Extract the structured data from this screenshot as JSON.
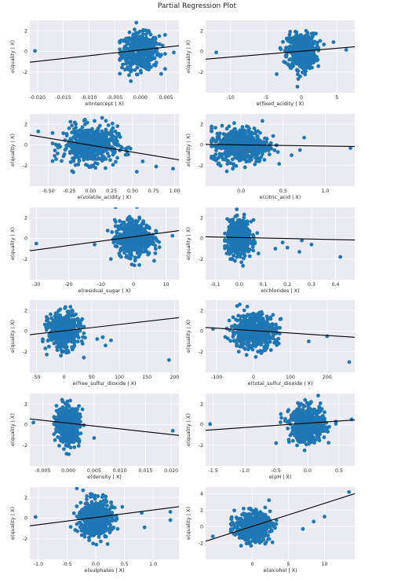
{
  "figure_title": "Partial Regression Plot",
  "colors": {
    "panel_bg": "#eaeaf2",
    "grid": "#ffffff",
    "points": "#1f77b4",
    "fit_line": "#000000"
  },
  "chart_data": [
    {
      "type": "scatter",
      "xlabel": "e(Intercept | X)",
      "ylabel": "e(quality | X)",
      "xlim": [
        -0.0215,
        0.0075
      ],
      "ylim": [
        -4.0,
        3.0
      ],
      "xticks": [
        -0.02,
        -0.015,
        -0.01,
        -0.005,
        0.0,
        0.005
      ],
      "xtick_labels": [
        "-0.020",
        "-0.015",
        "-0.010",
        "-0.005",
        "0.000",
        "0.005"
      ],
      "yticks": [
        -2,
        0,
        2
      ],
      "ytick_labels": [
        "-2",
        "0",
        "2"
      ],
      "cloud": {
        "cx": 0.0,
        "sx": 0.0018,
        "sy": 0.85,
        "xrange": [
          -0.004,
          0.0048
        ]
      },
      "outliers": [
        [
          -0.0205,
          0.05
        ],
        [
          0.0065,
          -0.1
        ],
        [
          -0.0022,
          -2.3
        ],
        [
          0.0048,
          1.6
        ]
      ],
      "line": {
        "x": [
          -0.0215,
          0.0075
        ],
        "y": [
          -1.05,
          0.55
        ]
      }
    },
    {
      "type": "scatter",
      "xlabel": "e(fixed_acidity | X)",
      "ylabel": "e(quality | X)",
      "xlim": [
        -13.5,
        7.5
      ],
      "ylim": [
        -4.0,
        3.0
      ],
      "xticks": [
        -10,
        -5,
        0,
        5
      ],
      "xtick_labels": [
        "-10",
        "-5",
        "0",
        "5"
      ],
      "yticks": [
        -2,
        0,
        2
      ],
      "ytick_labels": [
        "-2",
        "0",
        "2"
      ],
      "cloud": {
        "cx": 0.0,
        "sx": 1.0,
        "sy": 0.85,
        "xrange": [
          -3.2,
          4.0
        ]
      },
      "outliers": [
        [
          -12.0,
          -0.1
        ],
        [
          6.3,
          0.15
        ],
        [
          4.5,
          0.9
        ],
        [
          -3.5,
          -2.2
        ]
      ],
      "line": {
        "x": [
          -13.5,
          7.5
        ],
        "y": [
          -0.75,
          0.45
        ]
      }
    },
    {
      "type": "scatter",
      "xlabel": "e(volatile_acidity | X)",
      "ylabel": "e(quality | X)",
      "xlim": [
        -0.72,
        1.05
      ],
      "ylim": [
        -4.0,
        3.0
      ],
      "xticks": [
        -0.5,
        -0.25,
        0.0,
        0.25,
        0.5,
        0.75,
        1.0
      ],
      "xtick_labels": [
        "-0.50",
        "-0.25",
        "0.00",
        "0.25",
        "0.50",
        "0.75",
        "1.00"
      ],
      "yticks": [
        -2,
        0,
        2
      ],
      "ytick_labels": [
        "-2",
        "0",
        "2"
      ],
      "cloud": {
        "cx": 0.0,
        "sx": 0.16,
        "sy": 0.9,
        "xrange": [
          -0.45,
          0.55
        ]
      },
      "outliers": [
        [
          -0.62,
          1.3
        ],
        [
          0.98,
          -2.3
        ],
        [
          0.78,
          -2.1
        ],
        [
          0.62,
          -1.6
        ],
        [
          0.55,
          -2.6
        ]
      ],
      "line": {
        "x": [
          -0.72,
          1.05
        ],
        "y": [
          0.95,
          -1.45
        ]
      }
    },
    {
      "type": "scatter",
      "xlabel": "e(citric_acid | X)",
      "ylabel": "e(quality | X)",
      "xlim": [
        -0.42,
        1.35
      ],
      "ylim": [
        -4.0,
        3.0
      ],
      "xticks": [
        0.0,
        0.5,
        1.0
      ],
      "xtick_labels": [
        "0.0",
        "0.5",
        "1.0"
      ],
      "yticks": [
        -2,
        0,
        2
      ],
      "ytick_labels": [
        "-2",
        "0",
        "2"
      ],
      "cloud": {
        "cx": 0.0,
        "sx": 0.16,
        "sy": 0.85,
        "xrange": [
          -0.35,
          0.55
        ]
      },
      "outliers": [
        [
          1.3,
          -0.3
        ],
        [
          0.75,
          0.7
        ],
        [
          0.6,
          -1.0
        ],
        [
          0.7,
          -0.5
        ]
      ],
      "line": {
        "x": [
          -0.42,
          1.35
        ],
        "y": [
          0.05,
          -0.15
        ]
      }
    },
    {
      "type": "scatter",
      "xlabel": "e(residual_sugar | X)",
      "ylabel": "e(quality | X)",
      "xlim": [
        -32,
        14
      ],
      "ylim": [
        -4.0,
        3.0
      ],
      "xticks": [
        -30,
        -20,
        -10,
        0,
        10
      ],
      "xtick_labels": [
        "-30",
        "-20",
        "-10",
        "0",
        "10"
      ],
      "yticks": [
        -2,
        0,
        2
      ],
      "ytick_labels": [
        "-2",
        "0",
        "2"
      ],
      "cloud": {
        "cx": 0.0,
        "sx": 2.8,
        "sy": 0.85,
        "xrange": [
          -8,
          8
        ]
      },
      "outliers": [
        [
          -30,
          -0.5
        ],
        [
          12,
          0.25
        ],
        [
          -12,
          -0.6
        ],
        [
          -7,
          -2.0
        ]
      ],
      "line": {
        "x": [
          -32,
          14
        ],
        "y": [
          -1.2,
          0.75
        ]
      }
    },
    {
      "type": "scatter",
      "xlabel": "e(chlorides | X)",
      "ylabel": "e(quality | X)",
      "xlim": [
        -0.14,
        0.48
      ],
      "ylim": [
        -4.0,
        3.0
      ],
      "xticks": [
        -0.1,
        0.0,
        0.1,
        0.2,
        0.3,
        0.4
      ],
      "xtick_labels": [
        "-0.1",
        "0.0",
        "0.1",
        "0.2",
        "0.3",
        "0.4"
      ],
      "yticks": [
        -2,
        0,
        2
      ],
      "ytick_labels": [
        "-2",
        "0",
        "2"
      ],
      "cloud": {
        "cx": 0.0,
        "sx": 0.025,
        "sy": 0.85,
        "xrange": [
          -0.06,
          0.12
        ]
      },
      "outliers": [
        [
          0.42,
          -1.8
        ],
        [
          0.3,
          -0.6
        ],
        [
          0.25,
          -1.3
        ],
        [
          0.2,
          -0.9
        ],
        [
          0.18,
          -0.4
        ],
        [
          0.15,
          -1.0
        ],
        [
          0.26,
          -0.2
        ]
      ],
      "line": {
        "x": [
          -0.14,
          0.48
        ],
        "y": [
          0.15,
          -0.15
        ]
      }
    },
    {
      "type": "scatter",
      "xlabel": "e(free_sulfur_dioxide | X)",
      "ylabel": "e(quality | X)",
      "xlim": [
        -62,
        208
      ],
      "ylim": [
        -4.0,
        3.0
      ],
      "xticks": [
        -50,
        0,
        50,
        100,
        150,
        200
      ],
      "xtick_labels": [
        "-50",
        "0",
        "50",
        "100",
        "150",
        "200"
      ],
      "yticks": [
        -2,
        0,
        2
      ],
      "ytick_labels": [
        "-2",
        "0",
        "2"
      ],
      "cloud": {
        "cx": 0.0,
        "sx": 14,
        "sy": 0.85,
        "xrange": [
          -40,
          60
        ]
      },
      "outliers": [
        [
          190,
          -2.8
        ],
        [
          75,
          -1.4
        ],
        [
          70,
          -0.6
        ],
        [
          85,
          -0.9
        ]
      ],
      "line": {
        "x": [
          -62,
          208
        ],
        "y": [
          -0.35,
          1.3
        ]
      }
    },
    {
      "type": "scatter",
      "xlabel": "e(total_sulfur_dioxide | X)",
      "ylabel": "e(quality | X)",
      "xlim": [
        -130,
        275
      ],
      "ylim": [
        -4.0,
        3.0
      ],
      "xticks": [
        -100,
        0,
        100,
        200
      ],
      "xtick_labels": [
        "-100",
        "0",
        "100",
        "200"
      ],
      "yticks": [
        -2,
        0,
        2
      ],
      "ytick_labels": [
        "-2",
        "0",
        "2"
      ],
      "cloud": {
        "cx": 0.0,
        "sx": 30,
        "sy": 0.85,
        "xrange": [
          -95,
          115
        ]
      },
      "outliers": [
        [
          260,
          -3.0
        ],
        [
          200,
          -0.5
        ],
        [
          -110,
          0.2
        ],
        [
          150,
          -1.0
        ]
      ],
      "line": {
        "x": [
          -130,
          275
        ],
        "y": [
          0.35,
          -0.6
        ]
      }
    },
    {
      "type": "scatter",
      "xlabel": "e(density | X)",
      "ylabel": "e(quality | X)",
      "xlim": [
        -0.0075,
        0.0215
      ],
      "ylim": [
        -4.0,
        3.0
      ],
      "xticks": [
        -0.005,
        0.0,
        0.005,
        0.01,
        0.015,
        0.02
      ],
      "xtick_labels": [
        "-0.005",
        "0.000",
        "0.005",
        "0.010",
        "0.015",
        "0.020"
      ],
      "yticks": [
        -2,
        0,
        2
      ],
      "ytick_labels": [
        "-2",
        "0",
        "2"
      ],
      "cloud": {
        "cx": 0.0,
        "sx": 0.0011,
        "sy": 0.85,
        "xrange": [
          -0.0028,
          0.0042
        ]
      },
      "outliers": [
        [
          0.0203,
          -0.6
        ],
        [
          -0.0068,
          0.2
        ],
        [
          0.005,
          -1.3
        ]
      ],
      "line": {
        "x": [
          -0.0075,
          0.0215
        ],
        "y": [
          0.55,
          -1.05
        ]
      }
    },
    {
      "type": "scatter",
      "xlabel": "e(pH | X)",
      "ylabel": "e(quality | X)",
      "xlim": [
        -1.62,
        0.75
      ],
      "ylim": [
        -4.0,
        3.0
      ],
      "xticks": [
        -1.5,
        -1.0,
        -0.5,
        0.0,
        0.5
      ],
      "xtick_labels": [
        "-1.5",
        "-1.0",
        "-0.5",
        "0.0",
        "0.5"
      ],
      "yticks": [
        -2,
        0,
        2
      ],
      "ytick_labels": [
        "-2",
        "0",
        "2"
      ],
      "cloud": {
        "cx": 0.0,
        "sx": 0.14,
        "sy": 0.85,
        "xrange": [
          -0.45,
          0.45
        ]
      },
      "outliers": [
        [
          -1.55,
          0.05
        ],
        [
          0.7,
          0.5
        ],
        [
          -0.5,
          -1.8
        ]
      ],
      "line": {
        "x": [
          -1.62,
          0.75
        ],
        "y": [
          -0.55,
          0.45
        ]
      }
    },
    {
      "type": "scatter",
      "xlabel": "e(sulphates | X)",
      "ylabel": "e(quality | X)",
      "xlim": [
        -1.15,
        1.45
      ],
      "ylim": [
        -4.0,
        3.0
      ],
      "xticks": [
        -1.0,
        -0.5,
        0.0,
        0.5,
        1.0
      ],
      "xtick_labels": [
        "-1.0",
        "-0.5",
        "0.0",
        "0.5",
        "1.0"
      ],
      "yticks": [
        -2,
        0,
        2
      ],
      "ytick_labels": [
        "-2",
        "0",
        "2"
      ],
      "cloud": {
        "cx": 0.0,
        "sx": 0.14,
        "sy": 0.9,
        "xrange": [
          -0.5,
          0.65
        ]
      },
      "outliers": [
        [
          -1.05,
          0.1
        ],
        [
          1.3,
          0.6
        ],
        [
          1.3,
          -0.2
        ],
        [
          0.8,
          0.5
        ],
        [
          0.85,
          -0.9
        ]
      ],
      "line": {
        "x": [
          -1.15,
          1.45
        ],
        "y": [
          -0.75,
          1.1
        ]
      }
    },
    {
      "type": "scatter",
      "xlabel": "e(alcohol | X)",
      "ylabel": "e(quality | X)",
      "xlim": [
        -6.5,
        14.2
      ],
      "ylim": [
        -4.0,
        4.8
      ],
      "xticks": [
        0,
        5,
        10
      ],
      "xtick_labels": [
        "0",
        "5",
        "10"
      ],
      "yticks": [
        -2,
        0,
        2,
        4
      ],
      "ytick_labels": [
        "-2",
        "0",
        "2",
        "4"
      ],
      "cloud": {
        "cx": 0.0,
        "sx": 1.2,
        "sy": 0.85,
        "xrange": [
          -3,
          4
        ]
      },
      "outliers": [
        [
          13.4,
          4.2
        ],
        [
          -5.5,
          -1.2
        ],
        [
          8.5,
          0.6
        ],
        [
          7,
          -0.3
        ],
        [
          10,
          1.2
        ]
      ],
      "line": {
        "x": [
          -6.5,
          14.2
        ],
        "y": [
          -1.8,
          4.0
        ]
      }
    }
  ]
}
